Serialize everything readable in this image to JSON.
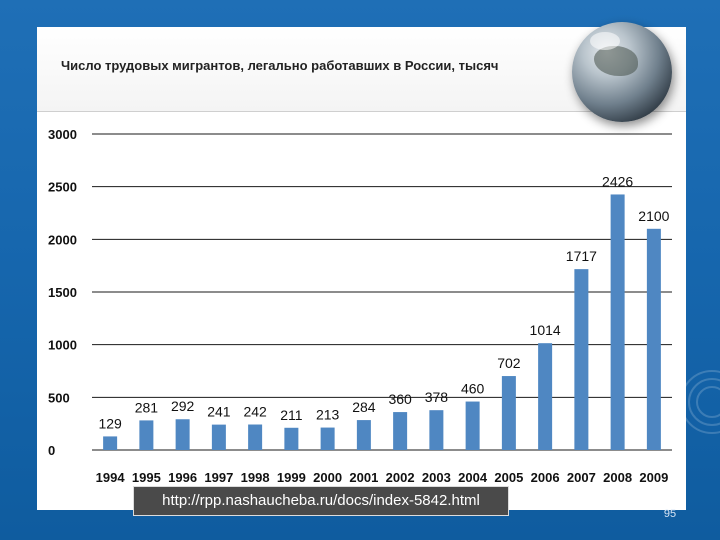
{
  "slide": {
    "url_caption": "http://rpp.nashaucheba.ru/docs/index-5842.html",
    "page_number": "95"
  },
  "colors": {
    "background": "#1666ad",
    "bar": "#4f87c2",
    "gridline": "#1a1a1a"
  },
  "chart_data": {
    "type": "bar",
    "title": "Число трудовых мигрантов, легально работавших в России, тысяч",
    "xlabel": "",
    "ylabel": "",
    "ylim": [
      0,
      3000
    ],
    "yticks": [
      "0",
      "500",
      "1000",
      "1500",
      "2000",
      "2500",
      "3000"
    ],
    "categories": [
      "1994",
      "1995",
      "1996",
      "1997",
      "1998",
      "1999",
      "2000",
      "2001",
      "2002",
      "2003",
      "2004",
      "2005",
      "2006",
      "2007",
      "2008",
      "2009"
    ],
    "values": [
      129,
      281,
      292,
      241,
      242,
      211,
      213,
      284,
      360,
      378,
      460,
      702,
      1014,
      1717,
      2426,
      2100
    ],
    "value_labels": [
      "129",
      "281",
      "292",
      "241",
      "242",
      "211",
      "213",
      "284",
      "360",
      "378",
      "460",
      "702",
      "1014",
      "1717",
      "2426",
      "2100"
    ],
    "grid": true,
    "legend": "none"
  }
}
